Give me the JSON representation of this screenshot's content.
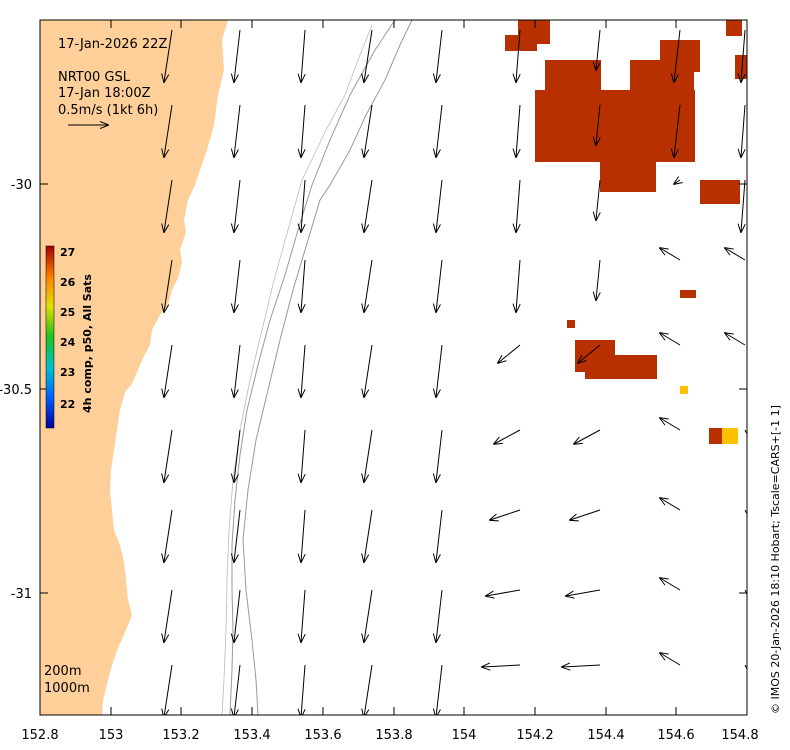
{
  "title": "17-Jan-2026 22Z",
  "current_label": "NRT00 GSL",
  "current_time": "17-Jan 18:00Z",
  "scale_label": "0.5m/s (1kt 6h)",
  "colorbar": {
    "label": "4h comp, p50, All Sats",
    "ticks": [
      "27",
      "26",
      "25",
      "24",
      "23",
      "22"
    ],
    "min": 21.5,
    "max": 27.5
  },
  "axes": {
    "x_ticks": [
      "152.8",
      "153",
      "153.2",
      "153.4",
      "153.6",
      "153.8",
      "154",
      "154.2",
      "154.4",
      "154.6",
      "154.8"
    ],
    "y_ticks": [
      "-30",
      "-30.5",
      "-31"
    ],
    "lon_range": [
      152.8,
      154.8
    ],
    "lat_range": [
      -29.59,
      -31.29
    ]
  },
  "contours": {
    "c200": "200m",
    "c1000": "1000m"
  },
  "credit": "© IMOS 20-Jan-2026 18:10 Hobart; Tscale=CARS+[-1 1]",
  "colors": {
    "land": "#FFCF99",
    "sst_hot": "#B83000",
    "sst_warm": "#FFC000",
    "contour": "#9a9a9a"
  }
}
